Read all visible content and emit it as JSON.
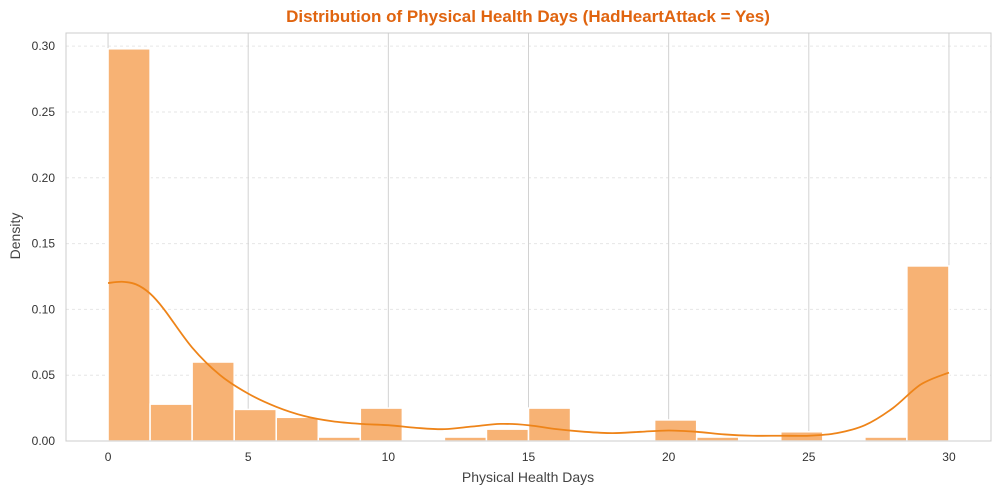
{
  "chart_data": {
    "type": "bar",
    "title": "Distribution of Physical Health Days (HadHeartAttack = Yes)",
    "xlabel": "Physical Health Days",
    "ylabel": "Density",
    "xlim": [
      -1.5,
      31.5
    ],
    "ylim": [
      0,
      0.31
    ],
    "xticks": [
      0,
      5,
      10,
      15,
      20,
      25,
      30
    ],
    "xtick_labels": [
      "0",
      "5",
      "10",
      "15",
      "20",
      "25",
      "30"
    ],
    "yticks": [
      0.0,
      0.05,
      0.1,
      0.15,
      0.2,
      0.25,
      0.3
    ],
    "ytick_labels": [
      "0.00",
      "0.05",
      "0.10",
      "0.15",
      "0.20",
      "0.25",
      "0.30"
    ],
    "grid": true,
    "bin_width": 1.5,
    "bins": [
      {
        "start": 0.0,
        "end": 1.5,
        "density": 0.298
      },
      {
        "start": 1.5,
        "end": 3.0,
        "density": 0.028
      },
      {
        "start": 3.0,
        "end": 4.5,
        "density": 0.06
      },
      {
        "start": 4.5,
        "end": 6.0,
        "density": 0.024
      },
      {
        "start": 6.0,
        "end": 7.5,
        "density": 0.018
      },
      {
        "start": 7.5,
        "end": 9.0,
        "density": 0.003
      },
      {
        "start": 9.0,
        "end": 10.5,
        "density": 0.025
      },
      {
        "start": 10.5,
        "end": 12.0,
        "density": 0.0
      },
      {
        "start": 12.0,
        "end": 13.5,
        "density": 0.003
      },
      {
        "start": 13.5,
        "end": 15.0,
        "density": 0.009
      },
      {
        "start": 15.0,
        "end": 16.5,
        "density": 0.025
      },
      {
        "start": 16.5,
        "end": 18.0,
        "density": 0.0
      },
      {
        "start": 18.0,
        "end": 19.5,
        "density": 0.0
      },
      {
        "start": 19.5,
        "end": 21.0,
        "density": 0.016
      },
      {
        "start": 21.0,
        "end": 22.5,
        "density": 0.003
      },
      {
        "start": 22.5,
        "end": 24.0,
        "density": 0.0
      },
      {
        "start": 24.0,
        "end": 25.5,
        "density": 0.007
      },
      {
        "start": 25.5,
        "end": 27.0,
        "density": 0.0
      },
      {
        "start": 27.0,
        "end": 28.5,
        "density": 0.003
      },
      {
        "start": 28.5,
        "end": 30.0,
        "density": 0.133
      }
    ],
    "kde": {
      "name": "KDE",
      "x": [
        0,
        0.5,
        1,
        1.5,
        2,
        3,
        4,
        5,
        6,
        7,
        8,
        9,
        10,
        11,
        12,
        13,
        14,
        15,
        16,
        17,
        18,
        19,
        20,
        21,
        22,
        23,
        24,
        25,
        26,
        27,
        28,
        29,
        30
      ],
      "y": [
        0.12,
        0.121,
        0.119,
        0.112,
        0.1,
        0.071,
        0.05,
        0.036,
        0.026,
        0.019,
        0.015,
        0.013,
        0.012,
        0.01,
        0.009,
        0.011,
        0.013,
        0.012,
        0.009,
        0.007,
        0.006,
        0.007,
        0.008,
        0.007,
        0.005,
        0.004,
        0.004,
        0.004,
        0.006,
        0.012,
        0.025,
        0.043,
        0.052
      ]
    },
    "colors": {
      "title": "#e0640f",
      "bar_fill": "#f7b274",
      "bar_stroke": "#ffffff",
      "kde_line": "#ee8419",
      "grid": "#d2d2d2",
      "hgrid": "#e6e6e6",
      "frame": "#cccccc"
    }
  }
}
